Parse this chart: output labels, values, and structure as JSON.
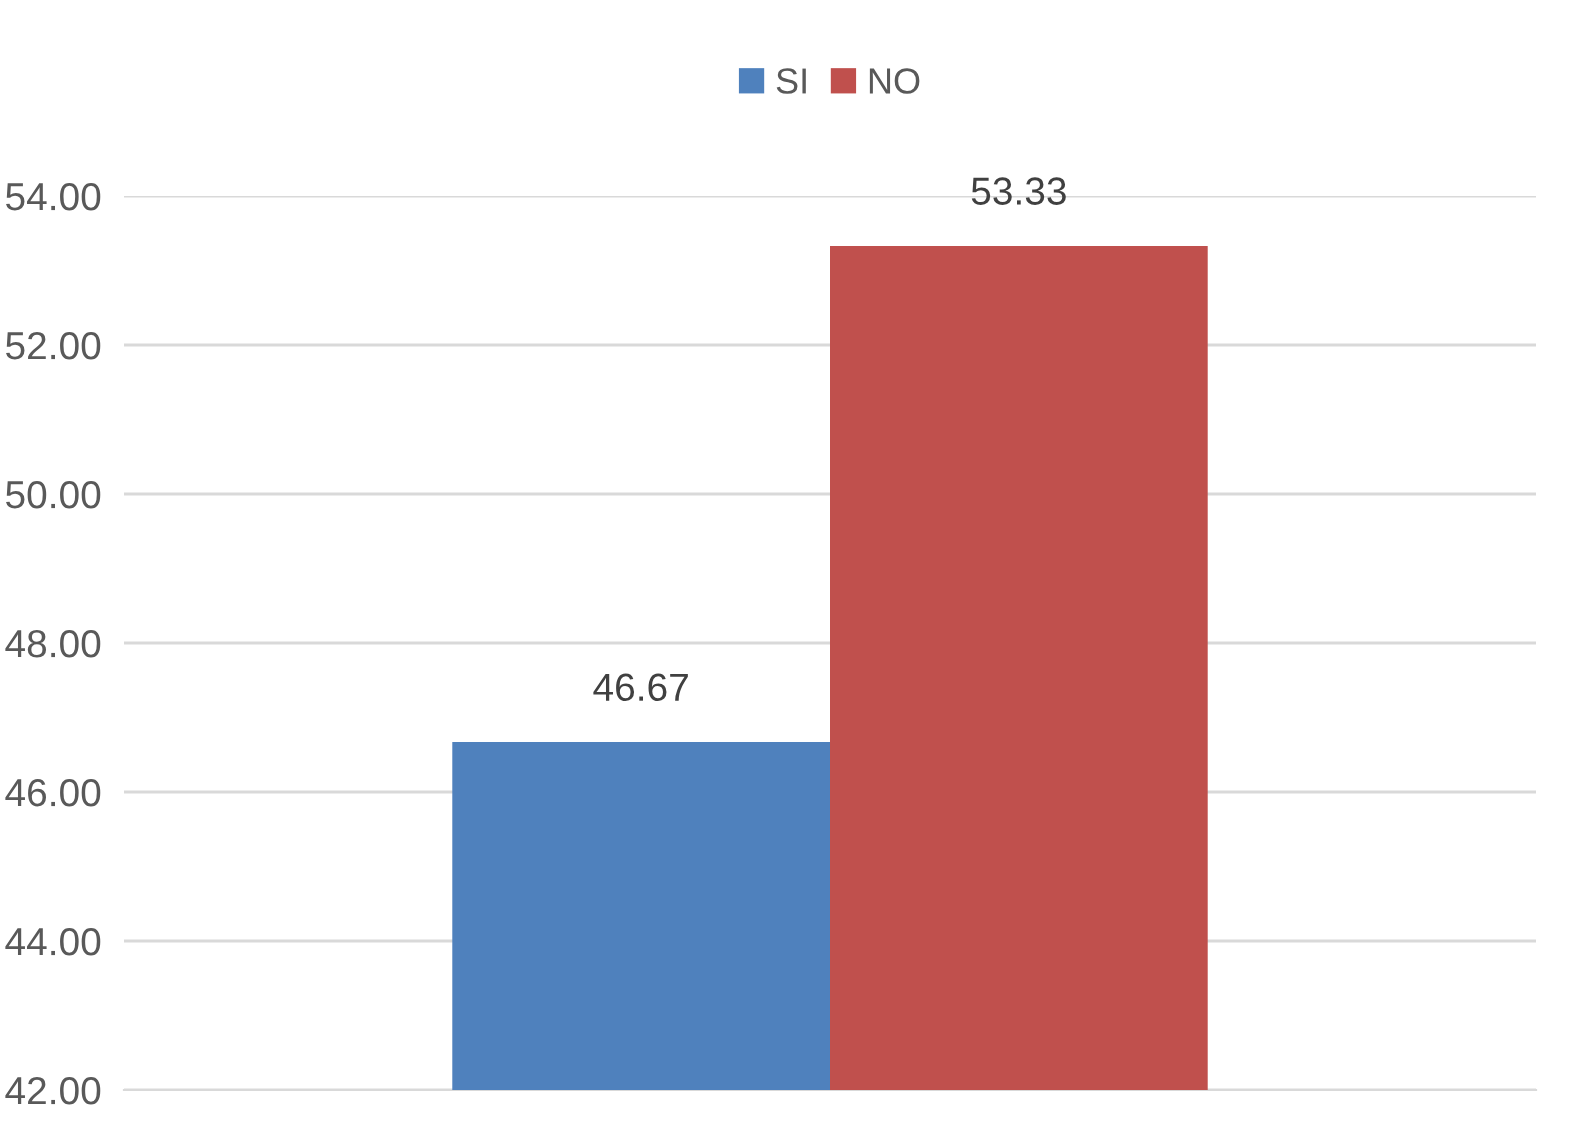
{
  "chart_data": {
    "type": "bar",
    "categories": [
      null
    ],
    "series": [
      {
        "name": "SI",
        "color": "#4f81bd",
        "values": [
          46.67
        ]
      },
      {
        "name": "NO",
        "color": "#c0504d",
        "values": [
          53.33
        ]
      }
    ],
    "ylim": [
      42,
      54
    ],
    "yticks": [
      {
        "value": 42,
        "label": "42.00"
      },
      {
        "value": 44,
        "label": "44.00"
      },
      {
        "value": 46,
        "label": "46.00"
      },
      {
        "value": 48,
        "label": "48.00"
      },
      {
        "value": 50,
        "label": "50.00"
      },
      {
        "value": 52,
        "label": "52.00"
      },
      {
        "value": 54,
        "label": "54.00"
      }
    ],
    "grid": "y",
    "legend": "top",
    "data_labels": true
  }
}
